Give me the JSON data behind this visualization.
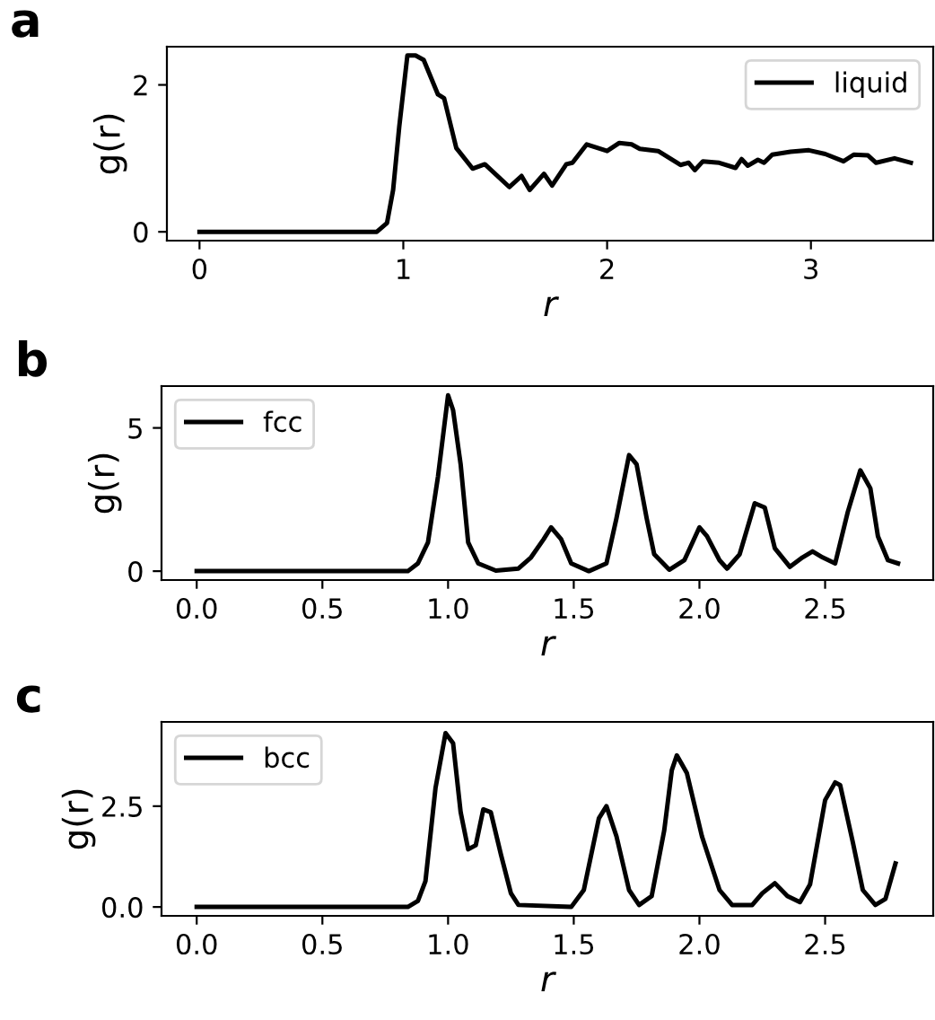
{
  "chart_data": [
    {
      "type": "line",
      "title": "a",
      "xlabel": "r",
      "ylabel": "g(r)",
      "legend": "top right",
      "grid": false,
      "xlim": [
        -0.16,
        3.6
      ],
      "ylim": [
        -0.12,
        2.52
      ],
      "xticks": [
        0,
        1,
        2,
        3
      ],
      "yticks": [
        0,
        2
      ],
      "series": [
        {
          "name": "liquid",
          "color": "#000000",
          "x": [
            0.0,
            0.87,
            0.92,
            0.95,
            0.98,
            1.02,
            1.06,
            1.1,
            1.17,
            1.2,
            1.26,
            1.34,
            1.4,
            1.52,
            1.58,
            1.62,
            1.69,
            1.73,
            1.8,
            1.83,
            1.9,
            2.0,
            2.06,
            2.12,
            2.16,
            2.25,
            2.36,
            2.4,
            2.43,
            2.47,
            2.55,
            2.63,
            2.66,
            2.69,
            2.74,
            2.77,
            2.81,
            2.9,
            2.99,
            3.07,
            3.16,
            3.21,
            3.28,
            3.32,
            3.41,
            3.49
          ],
          "values": [
            0,
            0,
            0.12,
            0.57,
            1.43,
            2.4,
            2.4,
            2.34,
            1.87,
            1.82,
            1.14,
            0.86,
            0.92,
            0.61,
            0.76,
            0.57,
            0.79,
            0.63,
            0.92,
            0.94,
            1.19,
            1.1,
            1.21,
            1.19,
            1.13,
            1.1,
            0.91,
            0.94,
            0.84,
            0.96,
            0.94,
            0.87,
            0.99,
            0.9,
            0.98,
            0.94,
            1.05,
            1.09,
            1.11,
            1.06,
            0.96,
            1.05,
            1.04,
            0.94,
            1.0,
            0.94
          ]
        }
      ]
    },
    {
      "type": "line",
      "title": "b",
      "xlabel": "r",
      "ylabel": "g(r)",
      "legend": "top left",
      "grid": false,
      "xlim": [
        -0.14,
        2.93
      ],
      "ylim": [
        -0.31,
        6.46
      ],
      "xticks": [
        {
          "value": 0,
          "label": "0.0"
        },
        {
          "value": 0.5,
          "label": "0.5"
        },
        {
          "value": 1,
          "label": "1.0"
        },
        {
          "value": 1.5,
          "label": "1.5"
        },
        {
          "value": 2,
          "label": "2.0"
        },
        {
          "value": 2.5,
          "label": "2.5"
        }
      ],
      "yticks": [
        0,
        5
      ],
      "series": [
        {
          "name": "fcc",
          "color": "#000000",
          "x": [
            0.0,
            0.84,
            0.88,
            0.92,
            0.96,
            1.0,
            1.02,
            1.05,
            1.08,
            1.12,
            1.19,
            1.28,
            1.33,
            1.38,
            1.41,
            1.45,
            1.49,
            1.56,
            1.63,
            1.67,
            1.72,
            1.75,
            1.79,
            1.82,
            1.88,
            1.94,
            2.0,
            2.03,
            2.08,
            2.11,
            2.16,
            2.22,
            2.26,
            2.3,
            2.36,
            2.41,
            2.45,
            2.49,
            2.54,
            2.59,
            2.64,
            2.68,
            2.71,
            2.75,
            2.79
          ],
          "values": [
            0,
            0,
            0.27,
            1.0,
            3.31,
            6.14,
            5.62,
            3.73,
            1.0,
            0.27,
            0.02,
            0.09,
            0.48,
            1.11,
            1.53,
            1.11,
            0.27,
            0,
            0.27,
            1.85,
            4.05,
            3.73,
            1.85,
            0.59,
            0.05,
            0.38,
            1.53,
            1.22,
            0.38,
            0.09,
            0.59,
            2.37,
            2.22,
            0.8,
            0.15,
            0.48,
            0.69,
            0.48,
            0.27,
            2.06,
            3.52,
            2.89,
            1.22,
            0.38,
            0.27
          ]
        }
      ]
    },
    {
      "type": "line",
      "title": "c",
      "xlabel": "r",
      "ylabel": "g(r)",
      "legend": "top left",
      "grid": false,
      "xlim": [
        -0.14,
        2.93
      ],
      "ylim": [
        -0.22,
        4.59
      ],
      "xticks": [
        {
          "value": 0,
          "label": "0.0"
        },
        {
          "value": 0.5,
          "label": "0.5"
        },
        {
          "value": 1,
          "label": "1.0"
        },
        {
          "value": 1.5,
          "label": "1.5"
        },
        {
          "value": 2,
          "label": "2.0"
        },
        {
          "value": 2.5,
          "label": "2.5"
        }
      ],
      "yticks": [
        {
          "value": 0,
          "label": "0.0"
        },
        {
          "value": 2.5,
          "label": "2.5"
        }
      ],
      "series": [
        {
          "name": "bcc",
          "color": "#000000",
          "x": [
            0.0,
            0.84,
            0.88,
            0.91,
            0.95,
            0.99,
            1.02,
            1.05,
            1.08,
            1.11,
            1.14,
            1.17,
            1.21,
            1.25,
            1.28,
            1.49,
            1.54,
            1.6,
            1.63,
            1.67,
            1.72,
            1.76,
            1.81,
            1.86,
            1.89,
            1.91,
            1.95,
            2.01,
            2.08,
            2.13,
            2.21,
            2.25,
            2.3,
            2.35,
            2.4,
            2.44,
            2.5,
            2.54,
            2.56,
            2.61,
            2.65,
            2.7,
            2.74,
            2.78
          ],
          "values": [
            0,
            0,
            0.15,
            0.64,
            2.95,
            4.31,
            4.06,
            2.35,
            1.43,
            1.53,
            2.42,
            2.35,
            1.31,
            0.34,
            0.05,
            0,
            0.42,
            2.2,
            2.5,
            1.75,
            0.42,
            0.05,
            0.27,
            1.9,
            3.39,
            3.76,
            3.32,
            1.75,
            0.42,
            0.05,
            0.05,
            0.34,
            0.59,
            0.27,
            0.12,
            0.56,
            2.65,
            3.09,
            3.02,
            1.61,
            0.42,
            0.05,
            0.2,
            1.08
          ]
        }
      ]
    }
  ]
}
